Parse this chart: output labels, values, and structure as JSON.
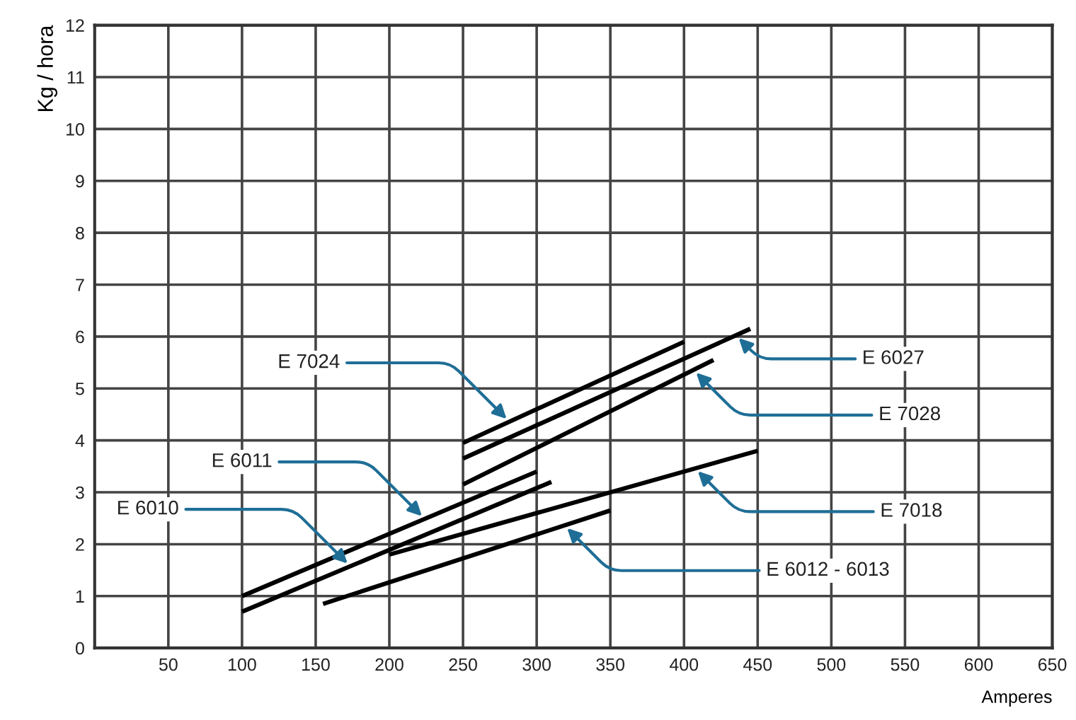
{
  "chart_data": {
    "type": "line",
    "xlabel": "Amperes",
    "ylabel": "Kg / hora",
    "xlim": [
      0,
      650
    ],
    "xticks": [
      50,
      100,
      150,
      200,
      250,
      300,
      350,
      400,
      450,
      500,
      550,
      600,
      650
    ],
    "ylim": [
      0,
      12
    ],
    "yticks": [
      0,
      1,
      2,
      3,
      4,
      5,
      6,
      7,
      8,
      9,
      10,
      11,
      12
    ],
    "grid": true,
    "marker": "none",
    "line_style": "solid",
    "series": [
      {
        "name": "E 6011",
        "color": "#000000",
        "x": [
          100,
          300
        ],
        "values": [
          1.0,
          3.4
        ]
      },
      {
        "name": "E 6010",
        "color": "#000000",
        "x": [
          100,
          310
        ],
        "values": [
          0.7,
          3.2
        ]
      },
      {
        "name": "E 6012 - 6013",
        "color": "#000000",
        "x": [
          155,
          350
        ],
        "values": [
          0.85,
          2.65
        ]
      },
      {
        "name": "E 7018",
        "color": "#000000",
        "x": [
          200,
          450
        ],
        "values": [
          1.8,
          3.8
        ]
      },
      {
        "name": "E 7024",
        "color": "#000000",
        "x": [
          250,
          400
        ],
        "values": [
          3.95,
          5.9
        ]
      },
      {
        "name": "E 6027",
        "color": "#000000",
        "x": [
          250,
          445
        ],
        "values": [
          3.65,
          6.15
        ]
      },
      {
        "name": "E 7028",
        "color": "#000000",
        "x": [
          250,
          420
        ],
        "values": [
          3.15,
          5.55
        ]
      }
    ]
  }
}
